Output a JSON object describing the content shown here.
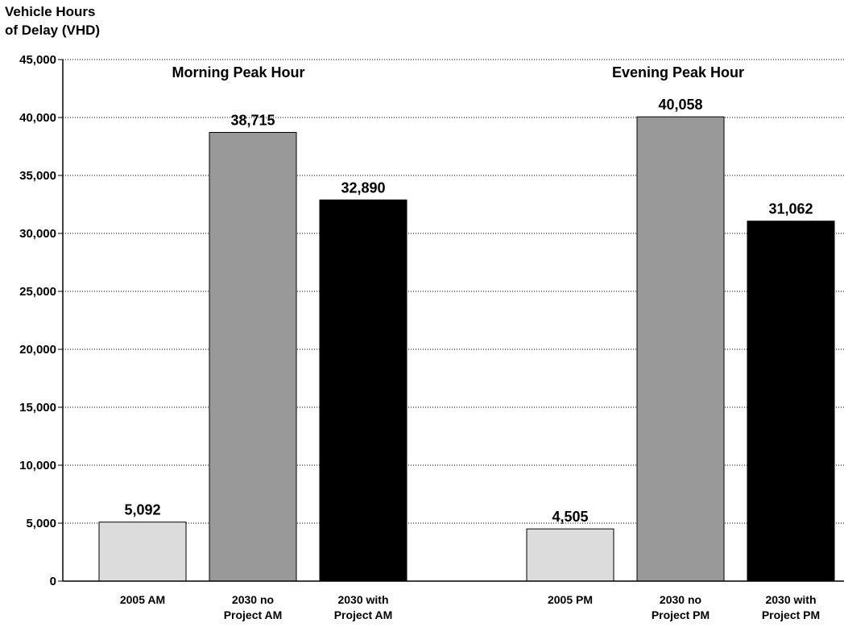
{
  "chart_data": {
    "type": "bar",
    "ylabel_lines": [
      "Vehicle Hours",
      "of Delay (VHD)"
    ],
    "ylim": [
      0,
      45000
    ],
    "yticks": [
      0,
      5000,
      10000,
      15000,
      20000,
      25000,
      30000,
      35000,
      40000,
      45000
    ],
    "ytick_labels": [
      "0",
      "5,000",
      "10,000",
      "15,000",
      "20,000",
      "25,000",
      "30,000",
      "35,000",
      "40,000",
      "45,000"
    ],
    "grid": true,
    "groups": [
      {
        "label": "Morning Peak Hour",
        "bars": [
          {
            "category_lines": [
              "2005 AM"
            ],
            "value": 5092,
            "value_label": "5,092",
            "color": "#dcdcdc"
          },
          {
            "category_lines": [
              "2030 no",
              "Project AM"
            ],
            "value": 38715,
            "value_label": "38,715",
            "color": "#999999"
          },
          {
            "category_lines": [
              "2030 with",
              "Project AM"
            ],
            "value": 32890,
            "value_label": "32,890",
            "color": "#000000"
          }
        ]
      },
      {
        "label": "Evening Peak Hour",
        "bars": [
          {
            "category_lines": [
              "2005 PM"
            ],
            "value": 4505,
            "value_label": "4,505",
            "color": "#dcdcdc"
          },
          {
            "category_lines": [
              "2030 no",
              "Project PM"
            ],
            "value": 40058,
            "value_label": "40,058",
            "color": "#999999"
          },
          {
            "category_lines": [
              "2030 with",
              "Project PM"
            ],
            "value": 31062,
            "value_label": "31,062",
            "color": "#000000"
          }
        ]
      }
    ]
  }
}
